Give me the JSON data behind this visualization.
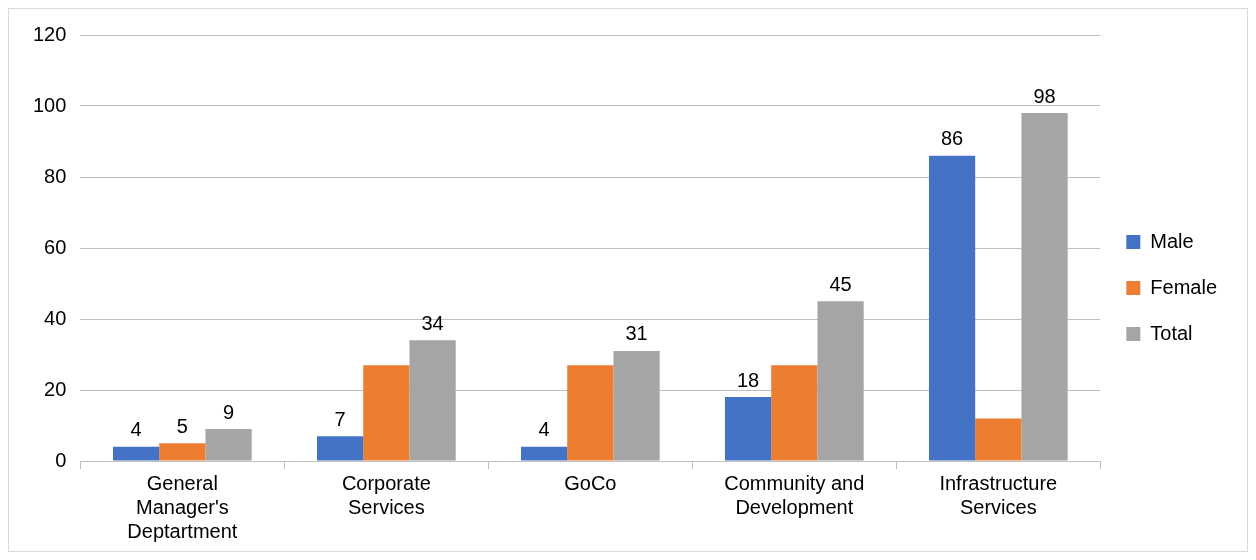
{
  "chart_data": {
    "type": "bar",
    "categories": [
      "General Manager's Deptartment",
      "Corporate Services",
      "GoCo",
      "Community and Development",
      "Infrastructure Services"
    ],
    "series": [
      {
        "name": "Male",
        "color": "#4472c4",
        "values": [
          4,
          7,
          4,
          18,
          86
        ],
        "value_labels": [
          "4",
          "7",
          "4",
          "18",
          "86"
        ]
      },
      {
        "name": "Female",
        "color": "#ed7d31",
        "values": [
          5,
          27,
          27,
          27,
          12
        ],
        "value_labels": [
          "5",
          null,
          null,
          null,
          null
        ]
      },
      {
        "name": "Total",
        "color": "#a5a5a5",
        "values": [
          9,
          34,
          31,
          45,
          98
        ],
        "value_labels": [
          "9",
          "34",
          "31",
          "45",
          "98"
        ]
      }
    ],
    "ylim": [
      0,
      120
    ],
    "yticks": [
      0,
      20,
      40,
      60,
      80,
      100,
      120
    ],
    "grid": "y",
    "legend": "right"
  }
}
